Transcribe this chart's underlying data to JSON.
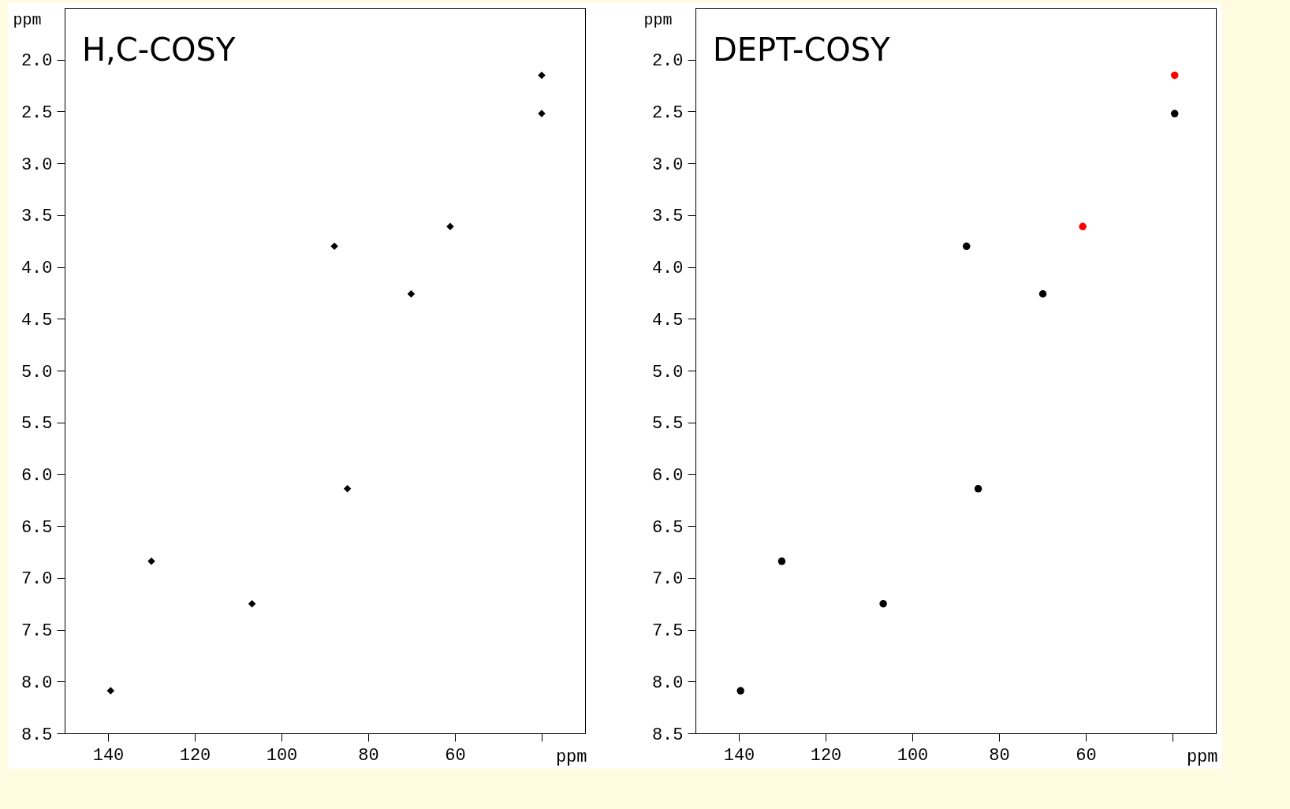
{
  "chart_data": [
    {
      "type": "scatter",
      "title": "H,C-COSY",
      "xlabel": "ppm",
      "ylabel": "ppm",
      "xlim": [
        150,
        30
      ],
      "ylim": [
        8.5,
        1.5
      ],
      "xticks": [
        140,
        120,
        100,
        80,
        60,
        {
          "value": 40,
          "label": null
        }
      ],
      "yticks": [
        {
          "value": 2,
          "label": "2.0"
        },
        2.5,
        {
          "value": 3,
          "label": "3.0"
        },
        3.5,
        {
          "value": 4,
          "label": "4.0"
        },
        4.5,
        {
          "value": 5,
          "label": "5.0"
        },
        5.5,
        {
          "value": 6,
          "label": "6.0"
        },
        6.5,
        {
          "value": 7,
          "label": "7.0"
        },
        7.5,
        {
          "value": 8,
          "label": "8.0"
        },
        8.5
      ],
      "grid": false,
      "marker": "diamond",
      "series": [
        {
          "color": "#000000",
          "x": [
            40,
            40,
            61.1,
            87.8,
            70.1,
            84.8,
            130,
            106.8,
            139.4
          ],
          "values": [
            2.15,
            2.52,
            3.61,
            3.8,
            4.26,
            6.14,
            6.84,
            7.25,
            8.09
          ]
        }
      ]
    },
    {
      "type": "scatter",
      "title": "DEPT-COSY",
      "xlabel": "ppm",
      "ylabel": "ppm",
      "xlim": [
        150,
        30
      ],
      "ylim": [
        8.5,
        1.5
      ],
      "xticks": [
        140,
        120,
        100,
        80,
        60,
        {
          "value": 40,
          "label": null
        }
      ],
      "yticks": [
        {
          "value": 2,
          "label": "2.0"
        },
        2.5,
        {
          "value": 3,
          "label": "3.0"
        },
        3.5,
        {
          "value": 4,
          "label": "4.0"
        },
        4.5,
        {
          "value": 5,
          "label": "5.0"
        },
        5.5,
        {
          "value": 6,
          "label": "6.0"
        },
        6.5,
        {
          "value": 7,
          "label": "7.0"
        },
        7.5,
        {
          "value": 8,
          "label": "8.0"
        },
        8.5
      ],
      "grid": false,
      "marker": "circle",
      "series": [
        {
          "color": "#000000",
          "x": [
            39.5,
            87.5,
            69.9,
            84.8,
            130.1,
            106.7,
            139.6
          ],
          "values": [
            2.52,
            3.8,
            4.26,
            6.14,
            6.84,
            7.25,
            8.09
          ]
        },
        {
          "color": "#ff0000",
          "x": [
            39.5,
            60.7
          ],
          "values": [
            2.15,
            3.61
          ]
        }
      ]
    }
  ]
}
